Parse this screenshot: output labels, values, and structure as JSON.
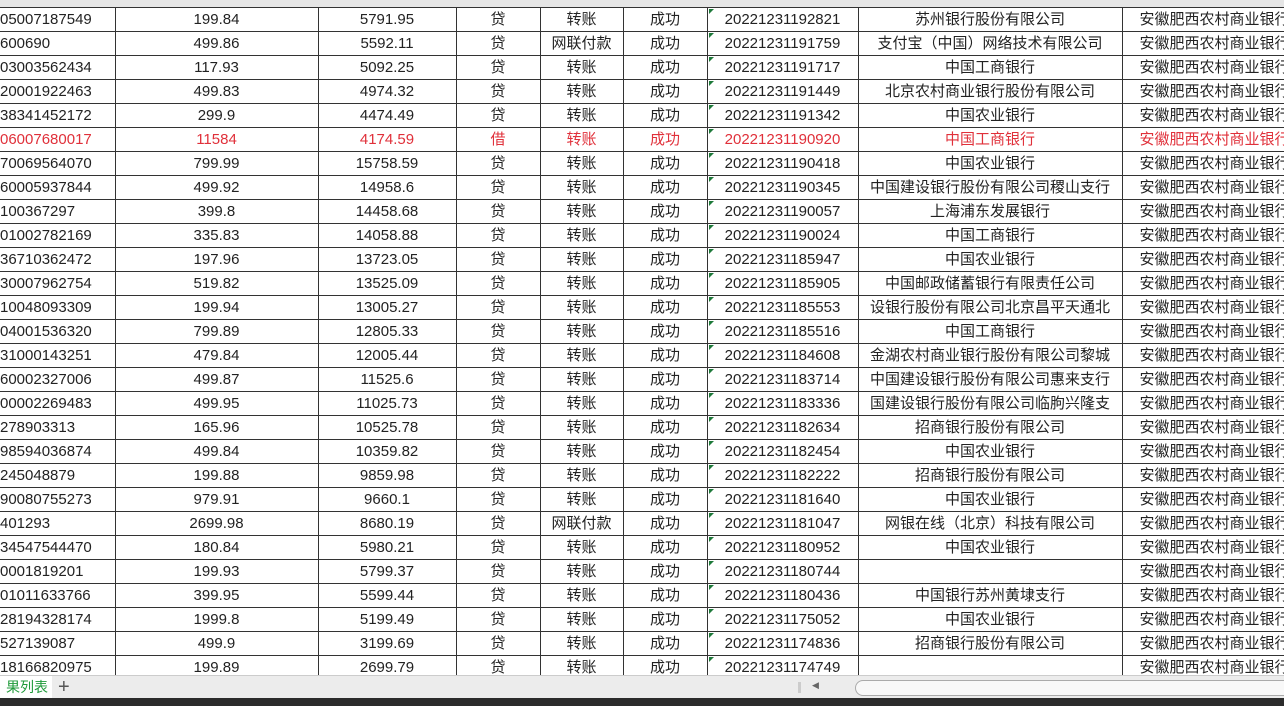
{
  "colors": {
    "accent_sheet_tab": "#1f9a3a",
    "highlight_row": "#e0303a"
  },
  "sheet": {
    "rows": [
      [
        "05007187549",
        "199.84",
        "5791.95",
        "贷",
        "转账",
        "成功",
        "20221231192821",
        "苏州银行股份有限公司",
        "安徽肥西农村商业银行"
      ],
      [
        "600690",
        "499.86",
        "5592.11",
        "贷",
        "网联付款",
        "成功",
        "20221231191759",
        "支付宝（中国）网络技术有限公司",
        "安徽肥西农村商业银行"
      ],
      [
        "03003562434",
        "117.93",
        "5092.25",
        "贷",
        "转账",
        "成功",
        "20221231191717",
        "中国工商银行",
        "安徽肥西农村商业银行"
      ],
      [
        "20001922463",
        "499.83",
        "4974.32",
        "贷",
        "转账",
        "成功",
        "20221231191449",
        "北京农村商业银行股份有限公司",
        "安徽肥西农村商业银行"
      ],
      [
        "38341452172",
        "299.9",
        "4474.49",
        "贷",
        "转账",
        "成功",
        "20221231191342",
        "中国农业银行",
        "安徽肥西农村商业银行"
      ],
      [
        "06007680017",
        "11584",
        "4174.59",
        "借",
        "转账",
        "成功",
        "20221231190920",
        "中国工商银行",
        "安徽肥西农村商业银行"
      ],
      [
        "70069564070",
        "799.99",
        "15758.59",
        "贷",
        "转账",
        "成功",
        "20221231190418",
        "中国农业银行",
        "安徽肥西农村商业银行"
      ],
      [
        "60005937844",
        "499.92",
        "14958.6",
        "贷",
        "转账",
        "成功",
        "20221231190345",
        "中国建设银行股份有限公司稷山支行",
        "安徽肥西农村商业银行"
      ],
      [
        "100367297",
        "399.8",
        "14458.68",
        "贷",
        "转账",
        "成功",
        "20221231190057",
        "上海浦东发展银行",
        "安徽肥西农村商业银行"
      ],
      [
        "01002782169",
        "335.83",
        "14058.88",
        "贷",
        "转账",
        "成功",
        "20221231190024",
        "中国工商银行",
        "安徽肥西农村商业银行"
      ],
      [
        "36710362472",
        "197.96",
        "13723.05",
        "贷",
        "转账",
        "成功",
        "20221231185947",
        "中国农业银行",
        "安徽肥西农村商业银行"
      ],
      [
        "30007962754",
        "519.82",
        "13525.09",
        "贷",
        "转账",
        "成功",
        "20221231185905",
        "中国邮政储蓄银行有限责任公司",
        "安徽肥西农村商业银行"
      ],
      [
        "10048093309",
        "199.94",
        "13005.27",
        "贷",
        "转账",
        "成功",
        "20221231185553",
        "设银行股份有限公司北京昌平天通北",
        "安徽肥西农村商业银行"
      ],
      [
        "04001536320",
        "799.89",
        "12805.33",
        "贷",
        "转账",
        "成功",
        "20221231185516",
        "中国工商银行",
        "安徽肥西农村商业银行"
      ],
      [
        "31000143251",
        "479.84",
        "12005.44",
        "贷",
        "转账",
        "成功",
        "20221231184608",
        "金湖农村商业银行股份有限公司黎城",
        "安徽肥西农村商业银行"
      ],
      [
        "60002327006",
        "499.87",
        "11525.6",
        "贷",
        "转账",
        "成功",
        "20221231183714",
        "中国建设银行股份有限公司惠来支行",
        "安徽肥西农村商业银行"
      ],
      [
        "00002269483",
        "499.95",
        "11025.73",
        "贷",
        "转账",
        "成功",
        "20221231183336",
        "国建设银行股份有限公司临朐兴隆支",
        "安徽肥西农村商业银行"
      ],
      [
        "278903313",
        "165.96",
        "10525.78",
        "贷",
        "转账",
        "成功",
        "20221231182634",
        "招商银行股份有限公司",
        "安徽肥西农村商业银行"
      ],
      [
        "98594036874",
        "499.84",
        "10359.82",
        "贷",
        "转账",
        "成功",
        "20221231182454",
        "中国农业银行",
        "安徽肥西农村商业银行"
      ],
      [
        "245048879",
        "199.88",
        "9859.98",
        "贷",
        "转账",
        "成功",
        "20221231182222",
        "招商银行股份有限公司",
        "安徽肥西农村商业银行"
      ],
      [
        "90080755273",
        "979.91",
        "9660.1",
        "贷",
        "转账",
        "成功",
        "20221231181640",
        "中国农业银行",
        "安徽肥西农村商业银行"
      ],
      [
        "401293",
        "2699.98",
        "8680.19",
        "贷",
        "网联付款",
        "成功",
        "20221231181047",
        "网银在线（北京）科技有限公司",
        "安徽肥西农村商业银行"
      ],
      [
        "34547544470",
        "180.84",
        "5980.21",
        "贷",
        "转账",
        "成功",
        "20221231180952",
        "中国农业银行",
        "安徽肥西农村商业银行"
      ],
      [
        "0001819201",
        "199.93",
        "5799.37",
        "贷",
        "转账",
        "成功",
        "20221231180744",
        "",
        "安徽肥西农村商业银行"
      ],
      [
        "01011633766",
        "399.95",
        "5599.44",
        "贷",
        "转账",
        "成功",
        "20221231180436",
        "中国银行苏州黄埭支行",
        "安徽肥西农村商业银行"
      ],
      [
        "28194328174",
        "1999.8",
        "5199.49",
        "贷",
        "转账",
        "成功",
        "20221231175052",
        "中国农业银行",
        "安徽肥西农村商业银行"
      ],
      [
        "527139087",
        "499.9",
        "3199.69",
        "贷",
        "转账",
        "成功",
        "20221231174836",
        "招商银行股份有限公司",
        "安徽肥西农村商业银行"
      ],
      [
        "18166820975",
        "199.89",
        "2699.79",
        "贷",
        "转账",
        "成功",
        "20221231174749",
        "",
        "安徽肥西农村商业银行"
      ]
    ],
    "highlighted_rows": [
      5
    ]
  },
  "tabbar": {
    "sheet_tab": "果列表",
    "add_sheet": "+"
  }
}
